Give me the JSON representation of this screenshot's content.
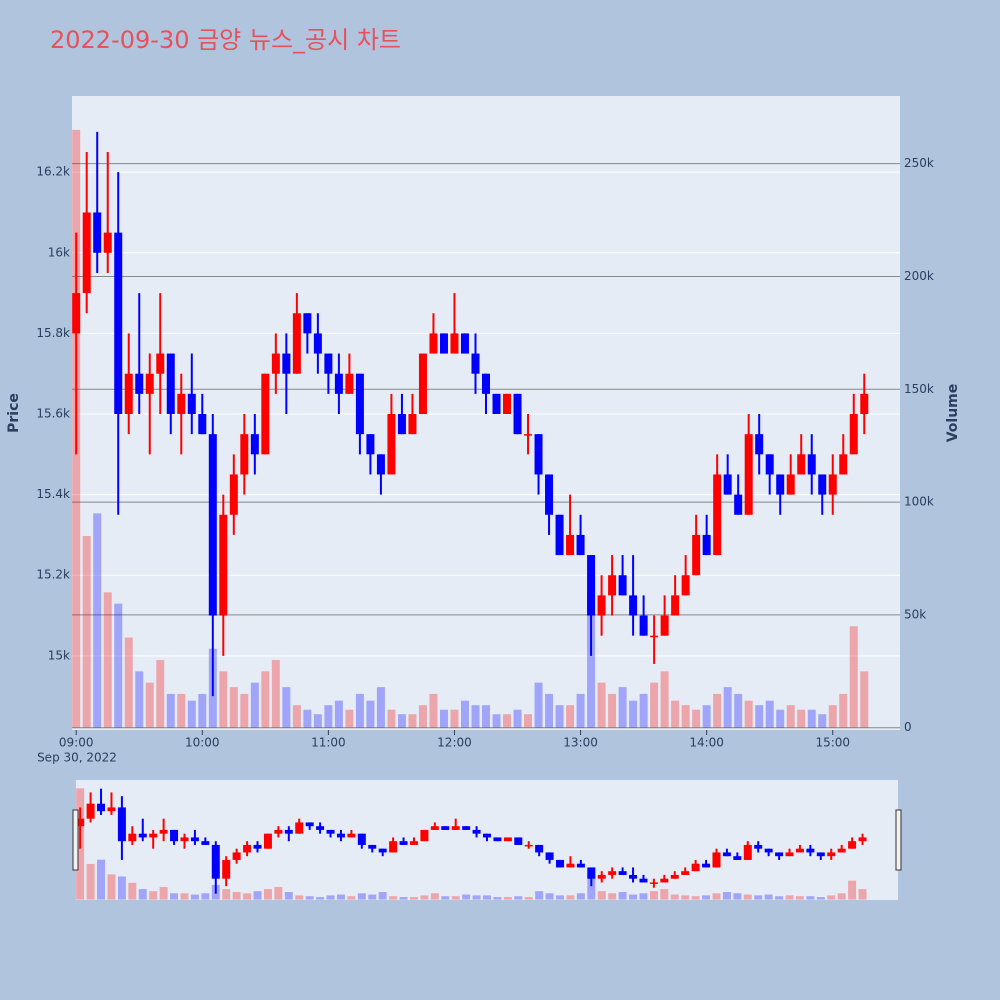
{
  "chart_data": {
    "type": "candlestick",
    "title": "2022-09-30 금양 뉴스_공시 차트",
    "y_label": "Price",
    "y2_label": "Volume",
    "x_date_label": "Sep 30, 2022",
    "increasing_color": "#ff0000",
    "decreasing_color": "#0000ff",
    "x": [
      "09:00",
      "09:05",
      "09:10",
      "09:15",
      "09:20",
      "09:25",
      "09:30",
      "09:35",
      "09:40",
      "09:45",
      "09:50",
      "09:55",
      "10:00",
      "10:05",
      "10:10",
      "10:15",
      "10:20",
      "10:25",
      "10:30",
      "10:35",
      "10:40",
      "10:45",
      "10:50",
      "10:55",
      "11:00",
      "11:05",
      "11:10",
      "11:15",
      "11:20",
      "11:25",
      "11:30",
      "11:35",
      "11:40",
      "11:45",
      "11:50",
      "11:55",
      "12:00",
      "12:05",
      "12:10",
      "12:15",
      "12:20",
      "12:25",
      "12:30",
      "12:35",
      "12:40",
      "12:45",
      "12:50",
      "12:55",
      "13:00",
      "13:05",
      "13:10",
      "13:15",
      "13:20",
      "13:25",
      "13:30",
      "13:35",
      "13:40",
      "13:45",
      "13:50",
      "13:55",
      "14:00",
      "14:05",
      "14:10",
      "14:15",
      "14:20",
      "14:25",
      "14:30",
      "14:35",
      "14:40",
      "14:45",
      "14:50",
      "14:55",
      "15:00",
      "15:05",
      "15:10",
      "15:15"
    ],
    "open": [
      15800,
      15900,
      16100,
      16000,
      16050,
      15600,
      15700,
      15650,
      15700,
      15750,
      15600,
      15650,
      15600,
      15550,
      15100,
      15350,
      15450,
      15550,
      15500,
      15700,
      15750,
      15700,
      15850,
      15800,
      15750,
      15700,
      15650,
      15700,
      15550,
      15500,
      15450,
      15600,
      15550,
      15600,
      15750,
      15800,
      15750,
      15800,
      15750,
      15700,
      15650,
      15600,
      15650,
      15550,
      15550,
      15450,
      15350,
      15250,
      15300,
      15250,
      15100,
      15150,
      15200,
      15150,
      15100,
      15050,
      15050,
      15100,
      15150,
      15200,
      15300,
      15250,
      15450,
      15400,
      15350,
      15550,
      15500,
      15450,
      15400,
      15450,
      15500,
      15450,
      15400,
      15450,
      15500,
      15600
    ],
    "high": [
      16050,
      16250,
      16300,
      16250,
      16200,
      15800,
      15900,
      15750,
      15900,
      15750,
      15700,
      15750,
      15650,
      15600,
      15400,
      15500,
      15600,
      15600,
      15700,
      15800,
      15800,
      15900,
      15850,
      15850,
      15750,
      15750,
      15750,
      15700,
      15550,
      15500,
      15650,
      15650,
      15650,
      15750,
      15850,
      15800,
      15900,
      15800,
      15800,
      15700,
      15650,
      15650,
      15650,
      15600,
      15550,
      15450,
      15350,
      15400,
      15350,
      15250,
      15200,
      15250,
      15250,
      15250,
      15150,
      15100,
      15150,
      15200,
      15250,
      15350,
      15350,
      15500,
      15500,
      15450,
      15600,
      15600,
      15500,
      15450,
      15500,
      15550,
      15550,
      15450,
      15500,
      15550,
      15650,
      15700
    ],
    "low": [
      15500,
      15850,
      15950,
      15950,
      15350,
      15550,
      15600,
      15500,
      15600,
      15550,
      15500,
      15550,
      15550,
      14900,
      15000,
      15300,
      15400,
      15450,
      15500,
      15650,
      15600,
      15700,
      15750,
      15700,
      15650,
      15600,
      15650,
      15500,
      15450,
      15400,
      15450,
      15550,
      15550,
      15600,
      15750,
      15750,
      15750,
      15750,
      15650,
      15600,
      15600,
      15600,
      15550,
      15500,
      15400,
      15300,
      15250,
      15250,
      15250,
      15000,
      15050,
      15100,
      15150,
      15050,
      15050,
      14980,
      15050,
      15100,
      15150,
      15200,
      15250,
      15250,
      15400,
      15350,
      15350,
      15450,
      15400,
      15350,
      15400,
      15450,
      15400,
      15350,
      15350,
      15450,
      15500,
      15550
    ],
    "close": [
      15900,
      16100,
      16000,
      16050,
      15600,
      15700,
      15650,
      15700,
      15750,
      15600,
      15650,
      15600,
      15550,
      15100,
      15350,
      15450,
      15550,
      15500,
      15700,
      15750,
      15700,
      15850,
      15800,
      15750,
      15700,
      15650,
      15700,
      15550,
      15500,
      15450,
      15600,
      15550,
      15600,
      15750,
      15800,
      15750,
      15800,
      15750,
      15700,
      15650,
      15600,
      15650,
      15550,
      15550,
      15450,
      15350,
      15250,
      15300,
      15250,
      15100,
      15150,
      15200,
      15150,
      15100,
      15050,
      15050,
      15100,
      15150,
      15200,
      15300,
      15250,
      15450,
      15400,
      15350,
      15550,
      15500,
      15450,
      15400,
      15450,
      15500,
      15450,
      15400,
      15450,
      15500,
      15600,
      15650
    ],
    "volume": {
      "axis": "y2",
      "values": [
        265000,
        85000,
        95000,
        60000,
        55000,
        40000,
        25000,
        20000,
        30000,
        15000,
        15000,
        12000,
        15000,
        35000,
        25000,
        18000,
        15000,
        20000,
        25000,
        30000,
        18000,
        10000,
        8000,
        6000,
        10000,
        12000,
        8000,
        15000,
        12000,
        18000,
        8000,
        6000,
        6000,
        10000,
        15000,
        8000,
        8000,
        12000,
        10000,
        10000,
        6000,
        6000,
        8000,
        6000,
        20000,
        15000,
        10000,
        10000,
        15000,
        60000,
        20000,
        15000,
        18000,
        12000,
        15000,
        20000,
        25000,
        12000,
        10000,
        8000,
        10000,
        15000,
        18000,
        15000,
        12000,
        10000,
        12000,
        8000,
        10000,
        8000,
        8000,
        6000,
        10000,
        15000,
        45000,
        25000
      ]
    },
    "xlim": [
      "08:58",
      "15:32"
    ],
    "xticks": [
      "09:00",
      "10:00",
      "11:00",
      "12:00",
      "13:00",
      "14:00",
      "15:00"
    ],
    "ylim": [
      14816,
      16389
    ],
    "yticks": [
      {
        "value": 15000,
        "label": "15k"
      },
      {
        "value": 15200,
        "label": "15.2k"
      },
      {
        "value": 15400,
        "label": "15.4k"
      },
      {
        "value": 15600,
        "label": "15.6k"
      },
      {
        "value": 15800,
        "label": "15.8k"
      },
      {
        "value": 16000,
        "label": "16k"
      },
      {
        "value": 16200,
        "label": "16.2k"
      }
    ],
    "y2lim": [
      -1000,
      280000
    ],
    "y2ticks": [
      0,
      {
        "value": 50000,
        "label": "50k"
      },
      {
        "value": 100000,
        "label": "100k"
      },
      {
        "value": 150000,
        "label": "150k"
      },
      {
        "value": 200000,
        "label": "200k"
      },
      {
        "value": 250000,
        "label": "250k"
      }
    ],
    "grid": true,
    "range_slider": true
  }
}
